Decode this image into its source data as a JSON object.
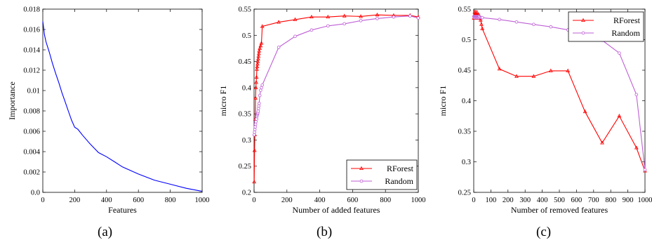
{
  "chart_data": [
    {
      "type": "line",
      "caption": "(a)",
      "xlabel": "Features",
      "ylabel": "Importance",
      "xlim": [
        0,
        1000
      ],
      "ylim": [
        0,
        0.018
      ],
      "xticks": [
        0,
        200,
        400,
        600,
        800,
        1000
      ],
      "yticks": [
        0,
        0.002,
        0.004,
        0.006,
        0.008,
        0.01,
        0.012,
        0.014,
        0.016,
        0.018
      ],
      "ytick_labels": [
        "0.0",
        "0.002",
        "0.004",
        "0.006",
        "0.008",
        "0.01",
        "0.012",
        "0.014",
        "0.016",
        "0.018"
      ],
      "grid": false,
      "series": [
        {
          "color": "#0000ff",
          "marker": "none",
          "x": [
            0,
            5,
            10,
            20,
            40,
            60,
            80,
            100,
            120,
            140,
            160,
            180,
            200,
            220,
            250,
            300,
            350,
            400,
            450,
            500,
            600,
            700,
            800,
            900,
            1000
          ],
          "y": [
            0.0168,
            0.0162,
            0.0155,
            0.0148,
            0.0138,
            0.0127,
            0.0117,
            0.0108,
            0.0098,
            0.0089,
            0.008,
            0.0071,
            0.0064,
            0.0062,
            0.0056,
            0.0047,
            0.0039,
            0.0035,
            0.003,
            0.0025,
            0.0018,
            0.0012,
            0.0008,
            0.0004,
            0.0001
          ]
        }
      ]
    },
    {
      "type": "line",
      "caption": "(b)",
      "xlabel": "Number of added features",
      "ylabel": "micro F1",
      "xlim": [
        0,
        1000
      ],
      "ylim": [
        0.2,
        0.55
      ],
      "xticks": [
        0,
        200,
        400,
        600,
        800,
        1000
      ],
      "yticks": [
        0.2,
        0.25,
        0.3,
        0.35,
        0.4,
        0.45,
        0.5,
        0.55
      ],
      "ytick_labels": [
        "0.2",
        "0.25",
        "0.3",
        "0.35",
        "0.4",
        "0.45",
        "0.5",
        "0.55"
      ],
      "grid": false,
      "legend": "bottom-right",
      "series": [
        {
          "name": "RForest",
          "color": "#ff0000",
          "marker": "triangle",
          "x": [
            1,
            3,
            5,
            7,
            9,
            11,
            13,
            15,
            17,
            19,
            21,
            23,
            25,
            27,
            29,
            31,
            35,
            40,
            45,
            50,
            150,
            250,
            350,
            450,
            550,
            650,
            750,
            850,
            950,
            1000
          ],
          "y": [
            0.22,
            0.28,
            0.31,
            0.34,
            0.38,
            0.4,
            0.41,
            0.42,
            0.435,
            0.44,
            0.445,
            0.45,
            0.455,
            0.46,
            0.465,
            0.47,
            0.475,
            0.48,
            0.485,
            0.517,
            0.525,
            0.53,
            0.535,
            0.535,
            0.537,
            0.536,
            0.539,
            0.538,
            0.538,
            0.535
          ]
        },
        {
          "name": "Random",
          "color": "#bf5fd6",
          "marker": "circle",
          "x": [
            1,
            3,
            5,
            7,
            9,
            11,
            13,
            15,
            17,
            19,
            21,
            23,
            25,
            27,
            29,
            31,
            35,
            40,
            45,
            50,
            150,
            250,
            350,
            450,
            550,
            650,
            750,
            850,
            950,
            1000
          ],
          "y": [
            0.31,
            0.315,
            0.32,
            0.325,
            0.33,
            0.335,
            0.34,
            0.34,
            0.345,
            0.348,
            0.35,
            0.352,
            0.355,
            0.36,
            0.365,
            0.37,
            0.385,
            0.395,
            0.4,
            0.405,
            0.477,
            0.498,
            0.51,
            0.518,
            0.522,
            0.528,
            0.532,
            0.535,
            0.537,
            0.533
          ]
        }
      ]
    },
    {
      "type": "line",
      "caption": "(c)",
      "xlabel": "Number of removed features",
      "ylabel": "micro F1",
      "xlim": [
        0,
        1000
      ],
      "ylim": [
        0.25,
        0.55
      ],
      "xticks": [
        0,
        100,
        200,
        300,
        400,
        500,
        600,
        700,
        800,
        900,
        1000
      ],
      "yticks": [
        0.25,
        0.3,
        0.35,
        0.4,
        0.45,
        0.5,
        0.55
      ],
      "ytick_labels": [
        "0.25",
        "0.3",
        "0.35",
        "0.4",
        "0.45",
        "0.5",
        "0.55"
      ],
      "grid": false,
      "legend": "top-right",
      "series": [
        {
          "name": "RForest",
          "color": "#ff0000",
          "marker": "triangle",
          "x": [
            1,
            3,
            5,
            7,
            9,
            11,
            13,
            15,
            17,
            19,
            21,
            23,
            25,
            27,
            29,
            31,
            35,
            40,
            45,
            50,
            150,
            250,
            350,
            450,
            550,
            650,
            750,
            850,
            950,
            1000
          ],
          "y": [
            0.535,
            0.54,
            0.545,
            0.535,
            0.54,
            0.545,
            0.54,
            0.535,
            0.54,
            0.545,
            0.54,
            0.535,
            0.54,
            0.538,
            0.536,
            0.54,
            0.535,
            0.532,
            0.525,
            0.518,
            0.452,
            0.44,
            0.44,
            0.449,
            0.449,
            0.382,
            0.331,
            0.375,
            0.323,
            0.285
          ]
        },
        {
          "name": "Random",
          "color": "#bf5fd6",
          "marker": "circle",
          "x": [
            1,
            3,
            5,
            7,
            9,
            11,
            13,
            15,
            17,
            19,
            21,
            23,
            25,
            27,
            29,
            31,
            35,
            40,
            45,
            50,
            150,
            250,
            350,
            450,
            550,
            650,
            750,
            850,
            950,
            1000
          ],
          "y": [
            0.538,
            0.537,
            0.536,
            0.538,
            0.537,
            0.536,
            0.538,
            0.537,
            0.536,
            0.538,
            0.537,
            0.536,
            0.538,
            0.537,
            0.536,
            0.538,
            0.537,
            0.536,
            0.536,
            0.536,
            0.533,
            0.529,
            0.525,
            0.521,
            0.516,
            0.51,
            0.499,
            0.478,
            0.41,
            0.287
          ]
        }
      ]
    }
  ]
}
